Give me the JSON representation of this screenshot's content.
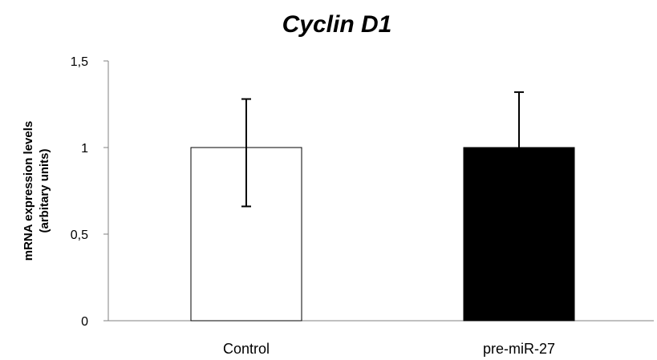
{
  "chart_data": {
    "type": "bar",
    "title": "Cyclin D1",
    "ylabel_line1": "mRNA expression levels",
    "ylabel_line2": "(arbitary units)",
    "categories": [
      "Control",
      "pre-miR-27"
    ],
    "values": [
      1.0,
      1.0
    ],
    "error_upper": [
      1.28,
      1.32
    ],
    "error_lower": [
      0.66,
      null
    ],
    "bar_colors": [
      "#ffffff",
      "#000000"
    ],
    "ylim": [
      0,
      1.5
    ],
    "yticks": [
      0,
      0.5,
      1,
      1.5
    ],
    "ytick_labels": [
      "0",
      "0,5",
      "1",
      "1,5"
    ],
    "grid": false,
    "legend": "none"
  }
}
